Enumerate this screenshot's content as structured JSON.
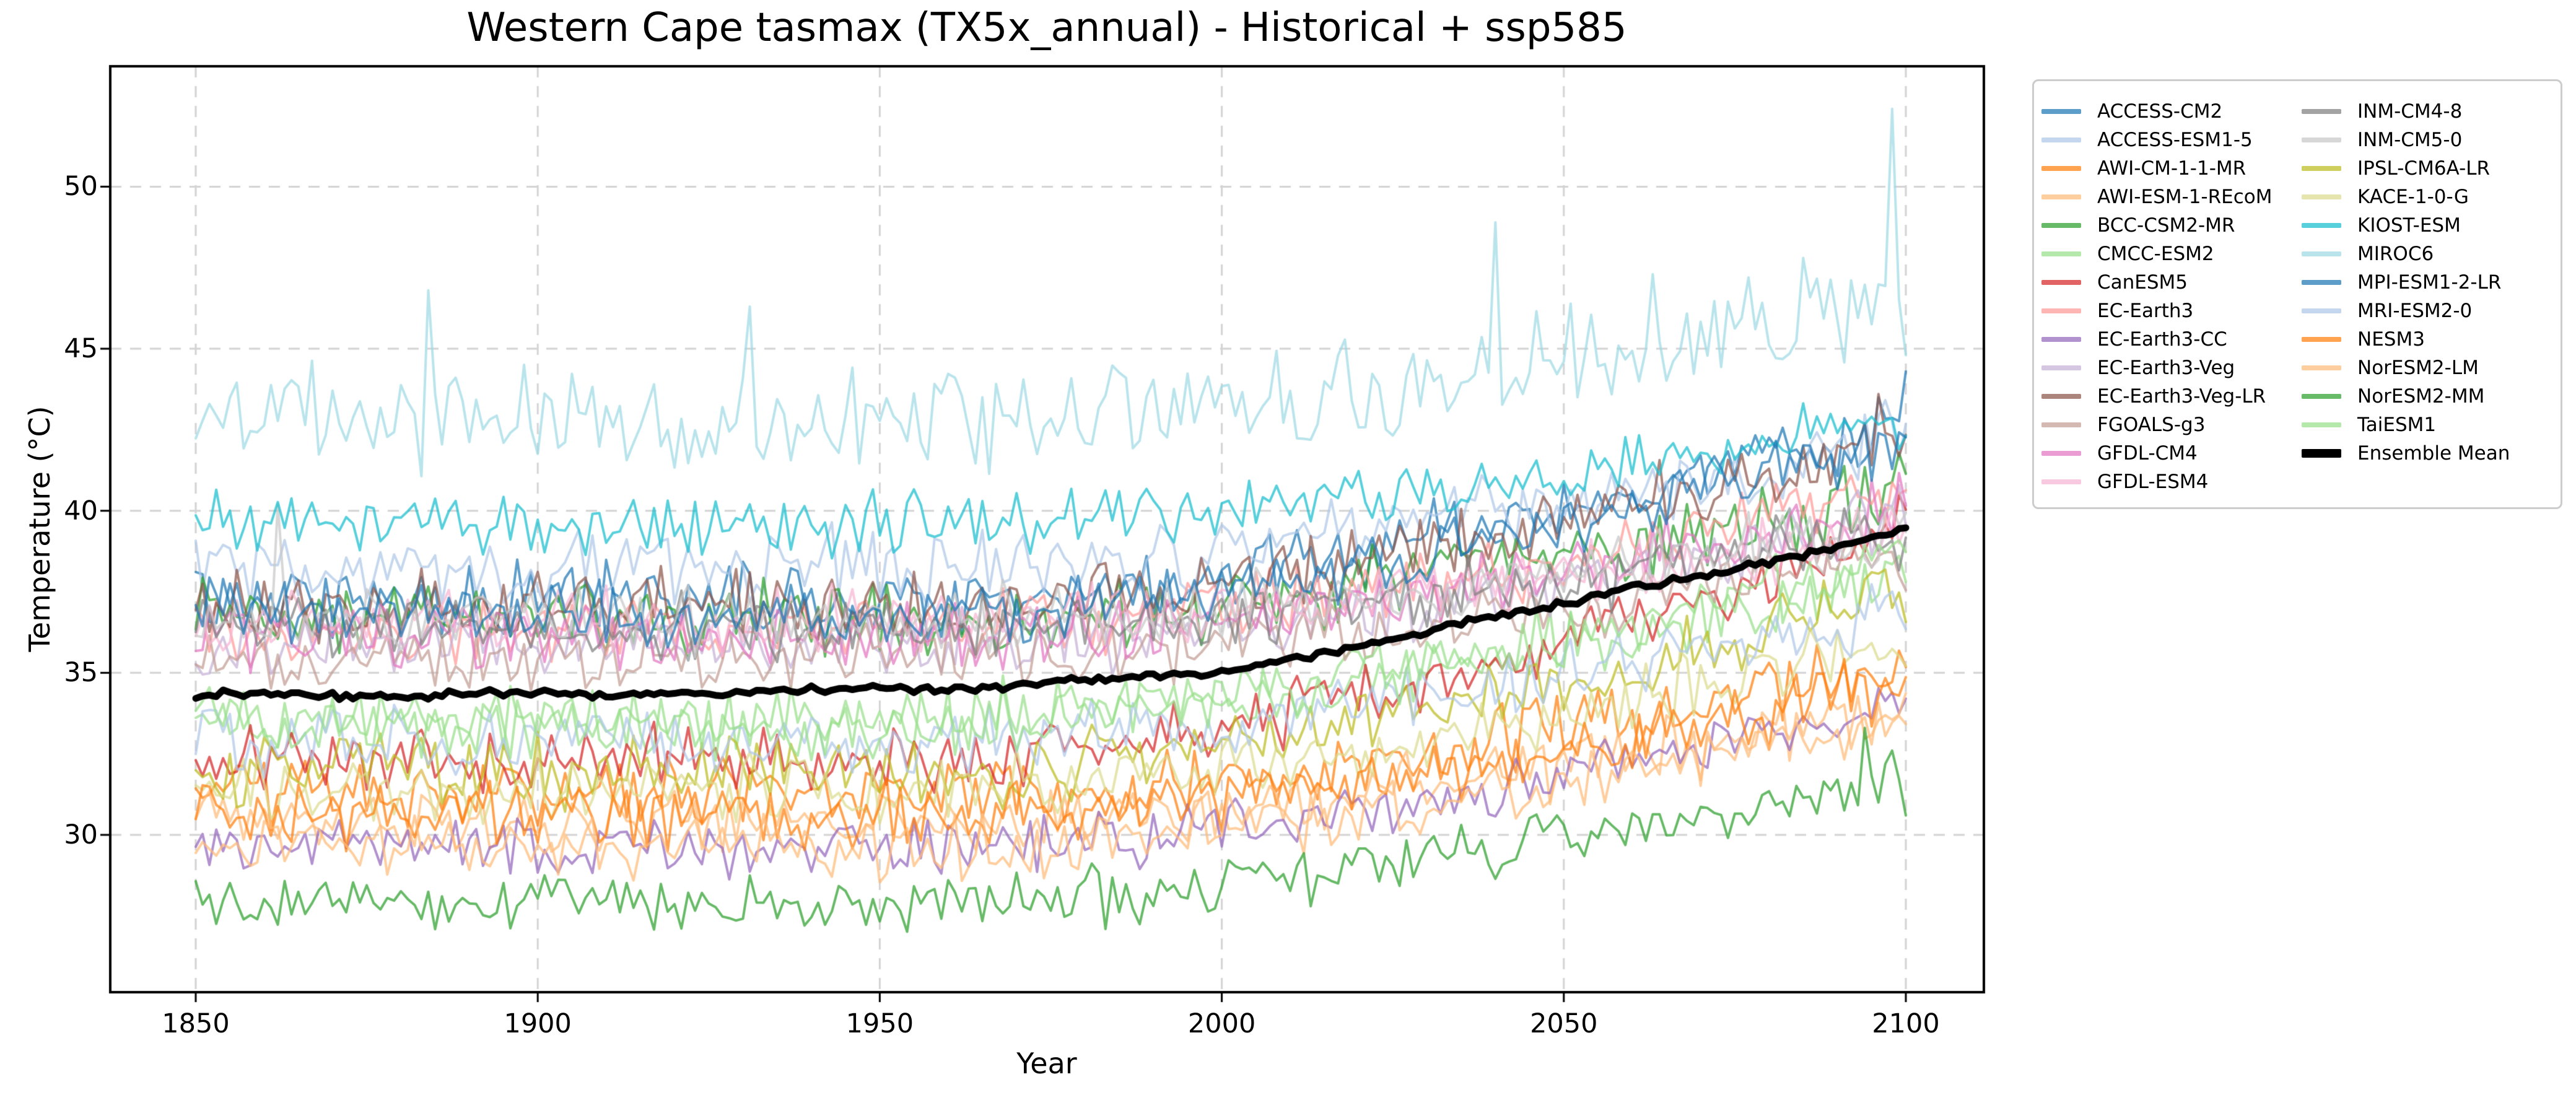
{
  "figure": {
    "title": "Western Cape tasmax (TX5x_annual) - Historical + ssp585",
    "xlabel": "Year",
    "ylabel": "Temperature (°C)",
    "background_color": "#ffffff",
    "grid_color": "#d4d4d4",
    "spine_color": "#000000",
    "text_color": "#000000"
  },
  "chart_data": {
    "type": "line",
    "title": "Western Cape tasmax (TX5x_annual) - Historical + ssp585",
    "xlabel": "Year",
    "ylabel": "Temperature (°C)",
    "x_range": [
      1850,
      2100
    ],
    "x_step_years": 1,
    "xlim": [
      1837.5,
      2111.5
    ],
    "ylim": [
      25.1,
      53.7
    ],
    "x_ticks": [
      1850,
      1900,
      1950,
      2000,
      2050,
      2100
    ],
    "y_ticks": [
      30,
      35,
      40,
      45,
      50
    ],
    "grid": true,
    "grid_style": "dashed",
    "legend_position": "outside-right",
    "line_alpha": 0.72,
    "trend_ramp": {
      "flat_until_year": 1960,
      "end_year": 2100,
      "exponent": 1.6
    },
    "series": [
      {
        "name": "ACCESS-CM2",
        "color": "#1f77b4",
        "start_mean": 37.3,
        "end_mean": 42.8,
        "noise_amplitude": 1.3,
        "spikes": [
          [
            2100,
            44.3
          ]
        ]
      },
      {
        "name": "ACCESS-ESM1-5",
        "color": "#aec7e8",
        "start_mean": 38.3,
        "end_mean": 42.3,
        "noise_amplitude": 1.4,
        "spikes": []
      },
      {
        "name": "AWI-CM-1-1-MR",
        "color": "#ff7f0e",
        "start_mean": 31.3,
        "end_mean": 35.3,
        "noise_amplitude": 1.2,
        "spikes": []
      },
      {
        "name": "AWI-ESM-1-REcoM",
        "color": "#ffbb78",
        "start_mean": 30.4,
        "end_mean": 33.8,
        "noise_amplitude": 1.2,
        "spikes": []
      },
      {
        "name": "BCC-CSM2-MR",
        "color": "#2ca02c",
        "start_mean": 36.6,
        "end_mean": 40.8,
        "noise_amplitude": 1.4,
        "spikes": []
      },
      {
        "name": "CMCC-ESM2",
        "color": "#98df8a",
        "start_mean": 33.6,
        "end_mean": 38.0,
        "noise_amplitude": 1.3,
        "spikes": []
      },
      {
        "name": "CanESM5",
        "color": "#d62728",
        "start_mean": 32.4,
        "end_mean": 39.6,
        "noise_amplitude": 1.2,
        "spikes": []
      },
      {
        "name": "EC-Earth3",
        "color": "#ff9896",
        "start_mean": 36.4,
        "end_mean": 40.8,
        "noise_amplitude": 1.3,
        "spikes": []
      },
      {
        "name": "EC-Earth3-CC",
        "color": "#9467bd",
        "start_mean": 29.6,
        "end_mean": 34.2,
        "noise_amplitude": 1.1,
        "spikes": []
      },
      {
        "name": "EC-Earth3-Veg",
        "color": "#c5b0d5",
        "start_mean": 35.9,
        "end_mean": 40.0,
        "noise_amplitude": 1.3,
        "spikes": []
      },
      {
        "name": "EC-Earth3-Veg-LR",
        "color": "#8c564b",
        "start_mean": 37.1,
        "end_mean": 42.4,
        "noise_amplitude": 1.3,
        "spikes": [
          [
            2096,
            43.6
          ]
        ]
      },
      {
        "name": "FGOALS-g3",
        "color": "#c49c94",
        "start_mean": 35.4,
        "end_mean": 38.6,
        "noise_amplitude": 1.2,
        "spikes": []
      },
      {
        "name": "GFDL-CM4",
        "color": "#e377c2",
        "start_mean": 36.1,
        "end_mean": 40.2,
        "noise_amplitude": 1.2,
        "spikes": []
      },
      {
        "name": "GFDL-ESM4",
        "color": "#f7b6d2",
        "start_mean": 36.6,
        "end_mean": 39.4,
        "noise_amplitude": 1.2,
        "spikes": []
      },
      {
        "name": "INM-CM4-8",
        "color": "#7f7f7f",
        "start_mean": 36.4,
        "end_mean": 39.3,
        "noise_amplitude": 1.2,
        "spikes": []
      },
      {
        "name": "INM-CM5-0",
        "color": "#c7c7c7",
        "start_mean": 36.6,
        "end_mean": 39.6,
        "noise_amplitude": 1.3,
        "spikes": [
          [
            1862,
            40.2
          ]
        ]
      },
      {
        "name": "IPSL-CM6A-LR",
        "color": "#bcbd22",
        "start_mean": 32.0,
        "end_mean": 37.6,
        "noise_amplitude": 1.3,
        "spikes": []
      },
      {
        "name": "KACE-1-0-G",
        "color": "#dbdb8d",
        "start_mean": 31.4,
        "end_mean": 36.2,
        "noise_amplitude": 1.3,
        "spikes": []
      },
      {
        "name": "KIOST-ESM",
        "color": "#17becf",
        "start_mean": 39.6,
        "end_mean": 42.8,
        "noise_amplitude": 1.2,
        "spikes": []
      },
      {
        "name": "MIROC6",
        "color": "#9edae5",
        "start_mean": 42.8,
        "end_mean": 46.4,
        "noise_amplitude": 2.0,
        "spikes": [
          [
            1884,
            46.8
          ],
          [
            1931,
            46.3
          ],
          [
            2040,
            48.9
          ],
          [
            2063,
            47.3
          ],
          [
            2085,
            47.8
          ],
          [
            2098,
            52.4
          ],
          [
            2100,
            44.8
          ]
        ]
      },
      {
        "name": "MPI-ESM1-2-LR",
        "color": "#1f77b4",
        "start_mean": 36.9,
        "end_mean": 42.3,
        "noise_amplitude": 1.3,
        "spikes": []
      },
      {
        "name": "MRI-ESM2-0",
        "color": "#aec7e8",
        "start_mean": 32.9,
        "end_mean": 37.0,
        "noise_amplitude": 1.3,
        "spikes": []
      },
      {
        "name": "NESM3",
        "color": "#ff7f0e",
        "start_mean": 30.6,
        "end_mean": 34.6,
        "noise_amplitude": 1.3,
        "spikes": []
      },
      {
        "name": "NorESM2-LM",
        "color": "#ffbb78",
        "start_mean": 29.6,
        "end_mean": 33.6,
        "noise_amplitude": 1.2,
        "spikes": []
      },
      {
        "name": "NorESM2-MM",
        "color": "#2ca02c",
        "start_mean": 27.9,
        "end_mean": 31.8,
        "noise_amplitude": 1.1,
        "spikes": [
          [
            2094,
            33.3
          ],
          [
            2096,
            31.0
          ],
          [
            2098,
            32.6
          ],
          [
            2100,
            30.6
          ]
        ]
      },
      {
        "name": "TaiESM1",
        "color": "#98df8a",
        "start_mean": 33.4,
        "end_mean": 38.8,
        "noise_amplitude": 1.3,
        "spikes": []
      }
    ],
    "ensemble_mean": {
      "name": "Ensemble Mean",
      "color": "#000000",
      "anchor_years": [
        1850,
        1860,
        1870,
        1880,
        1890,
        1900,
        1910,
        1920,
        1930,
        1940,
        1950,
        1960,
        1970,
        1980,
        1990,
        2000,
        2010,
        2020,
        2030,
        2040,
        2050,
        2060,
        2070,
        2080,
        2090,
        2100
      ],
      "anchor_values": [
        34.3,
        34.4,
        34.3,
        34.2,
        34.4,
        34.4,
        34.3,
        34.4,
        34.4,
        34.5,
        34.5,
        34.5,
        34.6,
        34.8,
        34.9,
        35.0,
        35.4,
        35.8,
        36.3,
        36.8,
        37.1,
        37.6,
        38.0,
        38.4,
        38.9,
        39.4
      ],
      "annual_wiggle_amplitude": 0.14
    }
  }
}
